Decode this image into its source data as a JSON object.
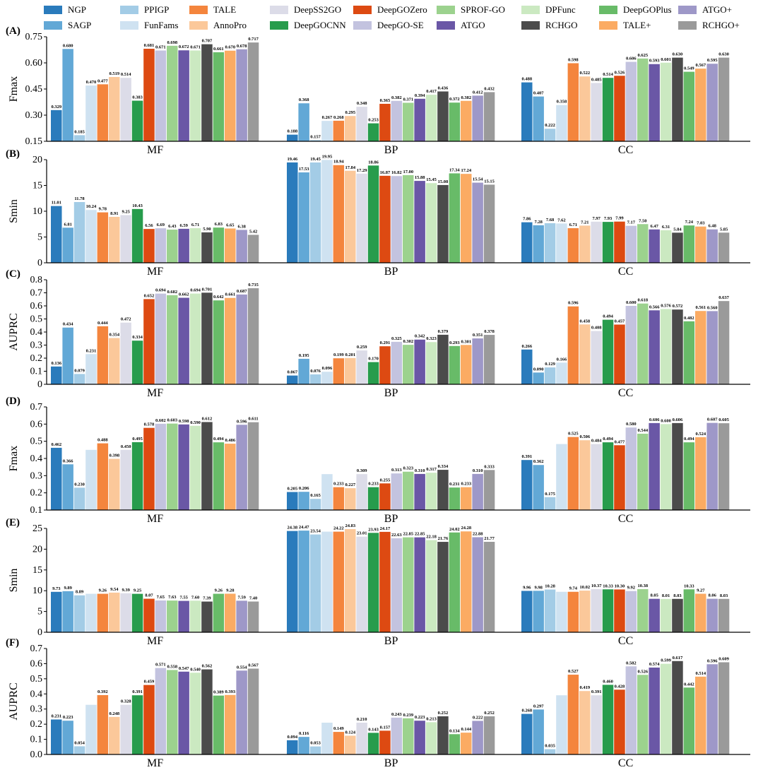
{
  "legend": {
    "items": [
      {
        "name": "NGP",
        "color": "#2a7bbc"
      },
      {
        "name": "SAGP",
        "color": "#62a8d6"
      },
      {
        "name": "PPIGP",
        "color": "#a3cce6"
      },
      {
        "name": "FunFams",
        "color": "#cfe2f1"
      },
      {
        "name": "TALE",
        "color": "#f4853d"
      },
      {
        "name": "AnnoPro",
        "color": "#fbc89a"
      },
      {
        "name": "DeepSS2GO",
        "color": "#dcdce8"
      },
      {
        "name": "DeepGOCNN",
        "color": "#279c4c"
      },
      {
        "name": "DeepGOZero",
        "color": "#dd4a12"
      },
      {
        "name": "DeepGO-SE",
        "color": "#c3c3df"
      },
      {
        "name": "SPROF-GO",
        "color": "#9cd28e"
      },
      {
        "name": "ATGO",
        "color": "#6a57a6"
      },
      {
        "name": "DPFunc",
        "color": "#cbe9c1"
      },
      {
        "name": "RCHGO",
        "color": "#4b4b4b"
      },
      {
        "name": "DeepGOPlus",
        "color": "#68bb68"
      },
      {
        "name": "TALE+",
        "color": "#fbab63"
      },
      {
        "name": "ATGO+",
        "color": "#9e98c8"
      },
      {
        "name": "RCHGO+",
        "color": "#9a9a9a"
      }
    ]
  },
  "chart_data": [
    {
      "panel": "(A)",
      "type": "bar",
      "ylabel": "Fmax",
      "ylim": [
        0.15,
        0.75
      ],
      "yticks": [
        "0.15",
        "0.30",
        "0.45",
        "0.60",
        "0.75"
      ],
      "categories": [
        "MF",
        "BP",
        "CC"
      ],
      "values": {
        "MF": [
          0.329,
          0.68,
          0.185,
          0.47,
          0.477,
          0.519,
          0.514,
          0.383,
          0.681,
          0.671,
          0.698,
          0.672,
          0.671,
          0.707,
          0.661,
          0.67,
          0.678,
          0.717
        ],
        "BP": [
          0.188,
          0.368,
          0.157,
          0.267,
          0.268,
          0.295,
          0.348,
          0.253,
          0.365,
          0.382,
          0.371,
          0.394,
          0.417,
          0.436,
          0.372,
          0.382,
          0.412,
          0.432
        ],
        "CC": [
          0.488,
          0.407,
          0.222,
          0.358,
          0.598,
          0.522,
          0.485,
          0.514,
          0.526,
          0.606,
          0.625,
          0.593,
          0.601,
          0.63,
          0.549,
          0.567,
          0.595,
          0.63
        ]
      },
      "labels": {
        "MF": [
          "0.329",
          "0.680",
          "0.185",
          "0.470",
          "0.477",
          "0.519",
          "0.514",
          "0.383",
          "0.681",
          "0.671",
          "0.698",
          "0.672",
          "0.671",
          "0.707",
          "0.661",
          "0.670",
          "0.678",
          "0.717"
        ],
        "BP": [
          "0.188",
          "0.368",
          "0.157",
          "0.267",
          "0.268",
          "0.295",
          "0.348",
          "0.253",
          "0.365",
          "0.382",
          "0.371",
          "0.394",
          "0.417",
          "0.436",
          "0.372",
          "0.382",
          "0.412",
          "0.432"
        ],
        "CC": [
          "0.488",
          "0.407",
          "0.222",
          "0.358",
          "0.598",
          "0.522",
          "0.485",
          "0.514",
          "0.526",
          "0.606",
          "0.625",
          "0.593",
          "0.601",
          "0.630",
          "0.549",
          "0.567",
          "0.595",
          "0.630"
        ]
      }
    },
    {
      "panel": "(B)",
      "type": "bar",
      "ylabel": "Smin",
      "ylim": [
        0,
        20
      ],
      "yticks": [
        "0",
        "5",
        "10",
        "15",
        "20"
      ],
      "categories": [
        "MF",
        "BP",
        "CC"
      ],
      "values": {
        "MF": [
          11.01,
          6.81,
          11.78,
          10.24,
          9.78,
          8.91,
          9.25,
          10.43,
          6.56,
          6.69,
          6.43,
          6.59,
          6.71,
          5.9,
          6.83,
          6.65,
          6.38,
          5.42
        ],
        "BP": [
          19.46,
          17.53,
          19.45,
          19.95,
          18.94,
          17.84,
          17.29,
          18.86,
          16.87,
          16.82,
          17.0,
          15.88,
          15.45,
          15.08,
          17.34,
          17.24,
          15.54,
          15.15
        ],
        "CC": [
          7.86,
          7.28,
          7.68,
          7.62,
          6.71,
          7.21,
          7.97,
          7.93,
          7.99,
          7.17,
          7.5,
          6.47,
          6.31,
          5.84,
          7.24,
          7.03,
          6.48,
          5.85
        ]
      },
      "labels": {
        "MF": [
          "11.01",
          "6.81",
          "11.78",
          "10.24",
          "9.78",
          "8.91",
          "9.25",
          "10.43",
          "6.56",
          "6.69",
          "6.43",
          "6.59",
          "6.71",
          "5.90",
          "6.83",
          "6.65",
          "6.38",
          "5.42"
        ],
        "BP": [
          "19.46",
          "17.53",
          "19.45",
          "19.95",
          "18.94",
          "17.84",
          "17.29",
          "18.86",
          "16.87",
          "16.82",
          "17.00",
          "15.88",
          "15.45",
          "15.08",
          "17.34",
          "17.24",
          "15.54",
          "15.15"
        ],
        "CC": [
          "7.86",
          "7.28",
          "7.68",
          "7.62",
          "6.71",
          "7.21",
          "7.97",
          "7.93",
          "7.99",
          "7.17",
          "7.50",
          "6.47",
          "6.31",
          "5.84",
          "7.24",
          "7.03",
          "6.48",
          "5.85"
        ]
      }
    },
    {
      "panel": "(C)",
      "type": "bar",
      "ylabel": "AUPRC",
      "ylim": [
        0,
        0.8
      ],
      "yticks": [
        "0",
        "0.1",
        "0.2",
        "0.3",
        "0.4",
        "0.5",
        "0.6",
        "0.7",
        "0.8"
      ],
      "categories": [
        "MF",
        "BP",
        "CC"
      ],
      "values": {
        "MF": [
          0.136,
          0.434,
          0.079,
          0.231,
          0.444,
          0.354,
          0.472,
          0.334,
          0.652,
          0.694,
          0.682,
          0.662,
          0.694,
          0.701,
          0.642,
          0.661,
          0.687,
          0.735
        ],
        "BP": [
          0.067,
          0.195,
          0.076,
          0.096,
          0.199,
          0.201,
          0.259,
          0.17,
          0.291,
          0.325,
          0.302,
          0.342,
          0.323,
          0.379,
          0.293,
          0.301,
          0.351,
          0.378
        ],
        "CC": [
          0.266,
          0.09,
          0.129,
          0.166,
          0.596,
          0.458,
          0.408,
          0.494,
          0.457,
          0.6,
          0.618,
          0.566,
          0.576,
          0.572,
          0.482,
          0.561,
          0.56,
          0.637
        ]
      },
      "labels": {
        "MF": [
          "0.136",
          "0.434",
          "0.079",
          "0.231",
          "0.444",
          "0.354",
          "0.472",
          "0.334",
          "0.652",
          "0.694",
          "0.682",
          "0.662",
          "0.694",
          "0.701",
          "0.642",
          "0.661",
          "0.687",
          "0.735"
        ],
        "BP": [
          "0.067",
          "0.195",
          "0.076",
          "0.096",
          "0.199",
          "0.201",
          "0.259",
          "0.170",
          "0.291",
          "0.325",
          "0.302",
          "0.342",
          "0.323",
          "0.379",
          "0.293",
          "0.301",
          "0.351",
          "0.378"
        ],
        "CC": [
          "0.266",
          "0.090",
          "0.129",
          "0.166",
          "0.596",
          "0.458",
          "0.408",
          "0.494",
          "0.457",
          "0.600",
          "0.618",
          "0.566",
          "0.576",
          "0.572",
          "0.482",
          "0.561",
          "0.560",
          "0.637"
        ]
      }
    },
    {
      "panel": "(D)",
      "type": "bar",
      "ylabel": "Fmax",
      "ylim": [
        0.1,
        0.7
      ],
      "yticks": [
        "0.1",
        "0.2",
        "0.3",
        "0.4",
        "0.5",
        "0.6",
        "0.7"
      ],
      "categories": [
        "MF",
        "BP",
        "CC"
      ],
      "values": {
        "MF": [
          0.462,
          0.366,
          0.23,
          0.45,
          0.488,
          0.398,
          0.45,
          0.495,
          0.578,
          0.602,
          0.603,
          0.598,
          0.59,
          0.612,
          0.494,
          0.486,
          0.596,
          0.611
        ],
        "BP": [
          0.205,
          0.206,
          0.165,
          0.309,
          0.233,
          0.227,
          0.309,
          0.233,
          0.255,
          0.313,
          0.323,
          0.31,
          0.317,
          0.334,
          0.231,
          0.233,
          0.31,
          0.333
        ],
        "CC": [
          0.391,
          0.362,
          0.175,
          0.484,
          0.525,
          0.506,
          0.484,
          0.494,
          0.477,
          0.58,
          0.544,
          0.606,
          0.6,
          0.606,
          0.494,
          0.524,
          0.607,
          0.605
        ]
      },
      "labels": {
        "MF": [
          "0.462",
          "0.366",
          "0.230",
          "",
          "0.488",
          "0.398",
          "0.450",
          "0.495",
          "0.578",
          "0.602",
          "0.603",
          "0.598",
          "0.590",
          "0.612",
          "0.494",
          "0.486",
          "0.596",
          "0.611"
        ],
        "BP": [
          "0.205",
          "0.206",
          "0.165",
          "",
          "0.233",
          "0.227",
          "0.309",
          "0.233",
          "0.255",
          "0.313",
          "0.323",
          "0.310",
          "0.317",
          "0.334",
          "0.231",
          "0.233",
          "0.310",
          "0.333"
        ],
        "CC": [
          "0.391",
          "0.362",
          "0.175",
          "",
          "0.525",
          "0.506",
          "0.484",
          "0.494",
          "0.477",
          "0.580",
          "0.544",
          "0.606",
          "0.600",
          "0.606",
          "0.494",
          "0.524",
          "0.607",
          "0.605"
        ]
      }
    },
    {
      "panel": "(E)",
      "type": "bar",
      "ylabel": "Smin",
      "ylim": [
        0,
        25
      ],
      "yticks": [
        "0",
        "5",
        "10",
        "15",
        "20",
        "25"
      ],
      "categories": [
        "MF",
        "BP",
        "CC"
      ],
      "values": {
        "MF": [
          9.73,
          9.89,
          8.89,
          9.26,
          9.26,
          9.54,
          9.39,
          9.25,
          8.07,
          7.65,
          7.63,
          7.55,
          7.6,
          7.39,
          9.26,
          9.28,
          7.59,
          7.4
        ],
        "BP": [
          24.38,
          24.47,
          23.54,
          24.22,
          24.22,
          24.83,
          23.01,
          23.93,
          24.17,
          22.63,
          22.85,
          22.85,
          22.18,
          21.76,
          24.02,
          24.28,
          22.88,
          21.77
        ],
        "CC": [
          9.96,
          9.98,
          10.28,
          9.74,
          9.74,
          10.02,
          10.37,
          10.33,
          10.3,
          9.92,
          10.38,
          8.05,
          8.01,
          8.03,
          10.33,
          9.27,
          8.06,
          8.03
        ]
      },
      "labels": {
        "MF": [
          "9.73",
          "9.89",
          "8.89",
          "",
          "9.26",
          "9.54",
          "9.39",
          "9.25",
          "8.07",
          "7.65",
          "7.63",
          "7.55",
          "7.60",
          "7.39",
          "9.26",
          "9.28",
          "7.59",
          "7.40"
        ],
        "BP": [
          "24.38",
          "24.47",
          "23.54",
          "",
          "24.22",
          "24.83",
          "23.01",
          "23.93",
          "24.17",
          "22.63",
          "22.85",
          "22.85",
          "22.18",
          "21.76",
          "24.02",
          "24.28",
          "22.88",
          "21.77"
        ],
        "CC": [
          "9.96",
          "9.98",
          "10.28",
          "",
          "9.74",
          "10.02",
          "10.37",
          "10.33",
          "10.30",
          "9.92",
          "10.38",
          "8.05",
          "8.01",
          "8.03",
          "10.33",
          "9.27",
          "8.06",
          "8.03"
        ]
      }
    },
    {
      "panel": "(F)",
      "type": "bar",
      "ylabel": "AUPRC",
      "ylim": [
        0,
        0.7
      ],
      "yticks": [
        "0.0",
        "0.1",
        "0.2",
        "0.3",
        "0.4",
        "0.5",
        "0.6",
        "0.7"
      ],
      "categories": [
        "MF",
        "BP",
        "CC"
      ],
      "values": {
        "MF": [
          0.231,
          0.223,
          0.054,
          0.328,
          0.392,
          0.248,
          0.328,
          0.391,
          0.459,
          0.571,
          0.558,
          0.547,
          0.54,
          0.562,
          0.389,
          0.393,
          0.554,
          0.567
        ],
        "BP": [
          0.094,
          0.116,
          0.053,
          0.21,
          0.149,
          0.124,
          0.21,
          0.143,
          0.157,
          0.243,
          0.239,
          0.223,
          0.213,
          0.252,
          0.134,
          0.144,
          0.222,
          0.252
        ],
        "CC": [
          0.268,
          0.297,
          0.035,
          0.391,
          0.527,
          0.419,
          0.391,
          0.46,
          0.428,
          0.582,
          0.526,
          0.574,
          0.599,
          0.617,
          0.442,
          0.514,
          0.596,
          0.609
        ]
      },
      "labels": {
        "MF": [
          "0.231",
          "0.223",
          "0.054",
          "",
          "0.392",
          "0.248",
          "0.328",
          "0.391",
          "0.459",
          "0.571",
          "0.558",
          "0.547",
          "0.540",
          "0.562",
          "0.389",
          "0.393",
          "0.554",
          "0.567"
        ],
        "BP": [
          "0.094",
          "0.116",
          "0.053",
          "",
          "0.149",
          "0.124",
          "0.210",
          "0.143",
          "0.157",
          "0.243",
          "0.239",
          "0.223",
          "0.213",
          "0.252",
          "0.134",
          "0.144",
          "0.222",
          "0.252"
        ],
        "CC": [
          "0.268",
          "0.297",
          "0.035",
          "",
          "0.527",
          "0.419",
          "0.391",
          "0.460",
          "0.428",
          "0.582",
          "0.526",
          "0.574",
          "0.599",
          "0.617",
          "0.442",
          "0.514",
          "0.596",
          "0.609"
        ]
      }
    }
  ]
}
